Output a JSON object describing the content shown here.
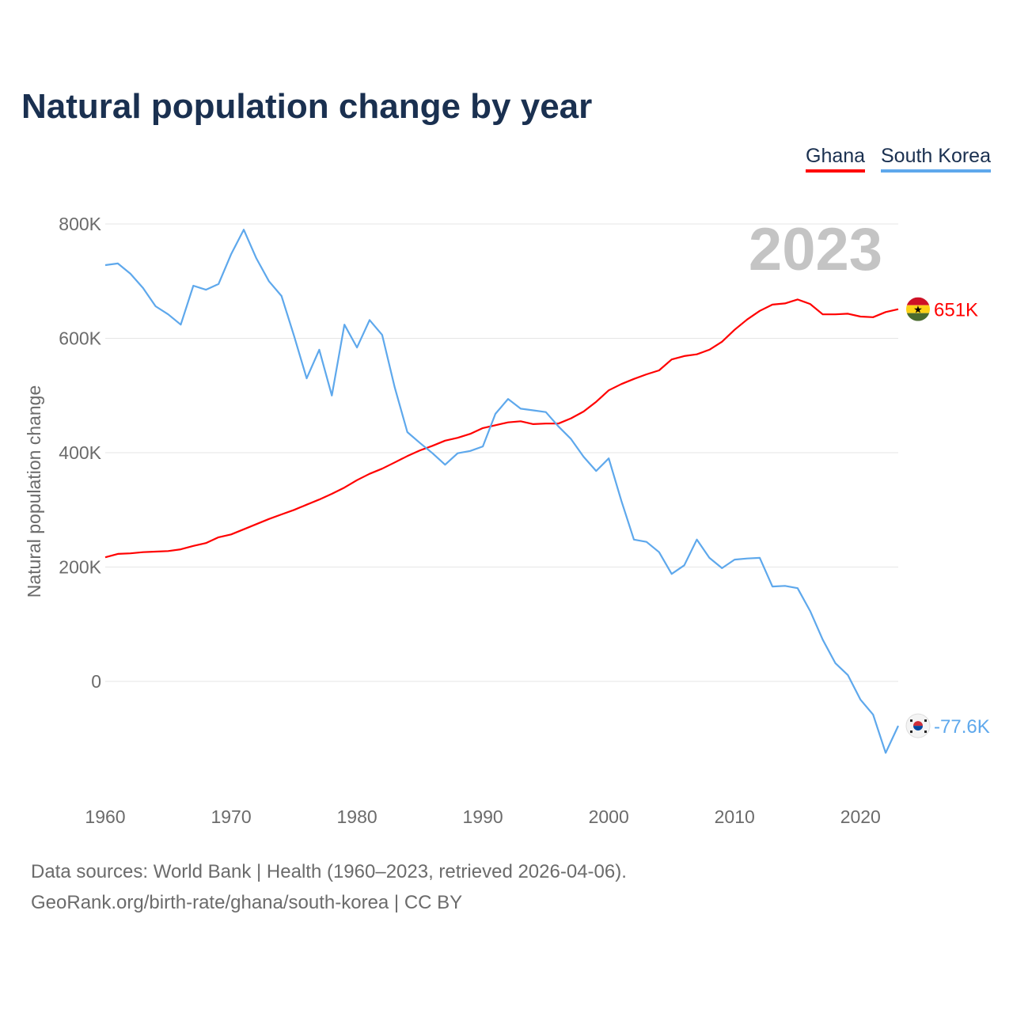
{
  "title": "Natural population change by year",
  "legend": [
    {
      "label": "Ghana",
      "color": "#ff0000"
    },
    {
      "label": "South Korea",
      "color": "#5ea8ec"
    }
  ],
  "year_label": "2023",
  "footer": {
    "line1": "Data sources: World Bank | Health (1960–2023, retrieved 2026-04-06).",
    "line2": "GeoRank.org/birth-rate/ghana/south-korea | CC BY"
  },
  "chart_data": {
    "type": "line",
    "title": "Natural population change by year",
    "xlabel": "",
    "ylabel": "Natural population change",
    "xlim": [
      1960,
      2023
    ],
    "ylim": [
      -200000,
      800000
    ],
    "x_ticks": [
      1960,
      1970,
      1980,
      1990,
      2000,
      2010,
      2020
    ],
    "x_tick_labels": [
      "1960",
      "1970",
      "1980",
      "1990",
      "2000",
      "2010",
      "2020"
    ],
    "y_ticks": [
      0,
      200000,
      400000,
      600000,
      800000
    ],
    "y_tick_labels": [
      "0",
      "200K",
      "400K",
      "600K",
      "800K"
    ],
    "grid": true,
    "legend_position": "top-right",
    "x_start": 1960,
    "series": [
      {
        "name": "Ghana",
        "color": "#ff0000",
        "end_label": "651K",
        "flag": "ghana-flag",
        "values_k": [
          217,
          223,
          224,
          226,
          227,
          228,
          231,
          237,
          242,
          252,
          257,
          266,
          275,
          284,
          292,
          300,
          309,
          318,
          328,
          339,
          352,
          363,
          372,
          383,
          394,
          404,
          412,
          421,
          426,
          433,
          443,
          448,
          453,
          455,
          450,
          451,
          451,
          460,
          472,
          489,
          509,
          520,
          529,
          537,
          544,
          563,
          569,
          572,
          580,
          594,
          615,
          633,
          648,
          659,
          661,
          668,
          660,
          642,
          642,
          643,
          638,
          637,
          646,
          651
        ]
      },
      {
        "name": "South Korea",
        "color": "#5ea8ec",
        "end_label": "-77.6K",
        "flag": "south-korea-flag",
        "values_k": [
          728,
          731,
          713,
          688,
          656,
          642,
          624,
          692,
          685,
          695,
          747,
          790,
          740,
          700,
          674,
          604,
          530,
          580,
          500,
          624,
          584,
          632,
          606,
          514,
          436,
          417,
          399,
          379,
          399,
          403,
          411,
          468,
          494,
          477,
          474,
          471,
          446,
          424,
          393,
          368,
          390,
          316,
          248,
          244,
          226,
          188,
          203,
          248,
          216,
          198,
          213,
          215,
          216,
          166,
          167,
          163,
          123,
          73,
          32,
          11,
          -32,
          -58,
          -125,
          -77.6
        ]
      }
    ]
  }
}
